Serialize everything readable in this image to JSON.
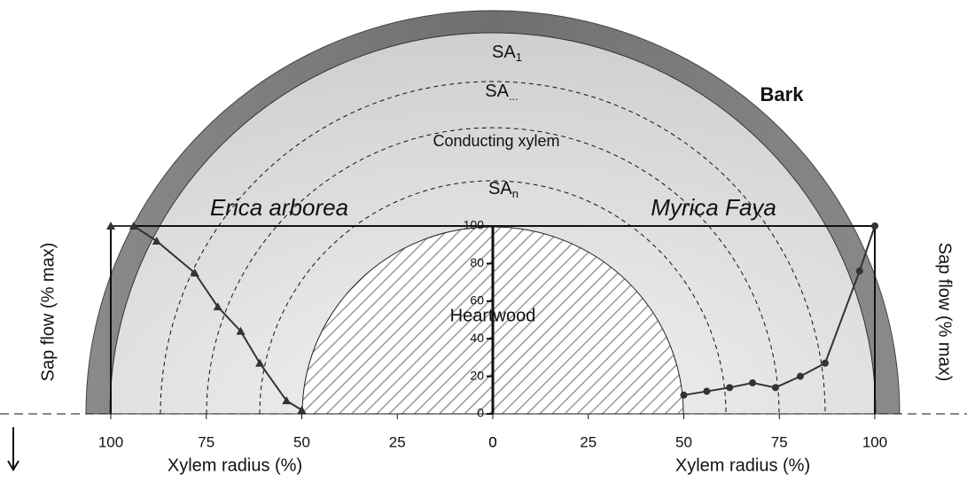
{
  "chart_data": {
    "type": "line",
    "x_label": "Xylem radius (%)",
    "y_label": "Sap flow (% max)",
    "xlim": [
      0,
      100
    ],
    "xticks": [
      0,
      25,
      50,
      75,
      100
    ],
    "ylim": [
      0,
      100
    ],
    "yticks": [
      0,
      20,
      40,
      60,
      80,
      100
    ],
    "series": [
      {
        "name": "Erica arborea",
        "side": "left",
        "marker": "triangle",
        "color": "#333333",
        "x": [
          100,
          94,
          88,
          78,
          72,
          66,
          61,
          54,
          50
        ],
        "values": [
          100,
          100,
          92,
          75,
          57,
          44,
          27,
          7,
          2
        ]
      },
      {
        "name": "Myrica Faya",
        "side": "right",
        "marker": "circle",
        "color": "#333333",
        "x": [
          50,
          56,
          62,
          68,
          74,
          80.5,
          87,
          96,
          100
        ],
        "values": [
          10,
          12,
          14,
          16.5,
          14,
          20,
          27,
          76,
          100
        ]
      }
    ]
  },
  "labels": {
    "bark": "Bark",
    "heartwood": "Heartwood",
    "conducting": "Conducting xylem",
    "sa1": {
      "base": "SA",
      "sub": "1"
    },
    "sa_mid": {
      "base": "SA",
      "sub": "..."
    },
    "san": {
      "base": "SA",
      "sub": "n"
    }
  }
}
